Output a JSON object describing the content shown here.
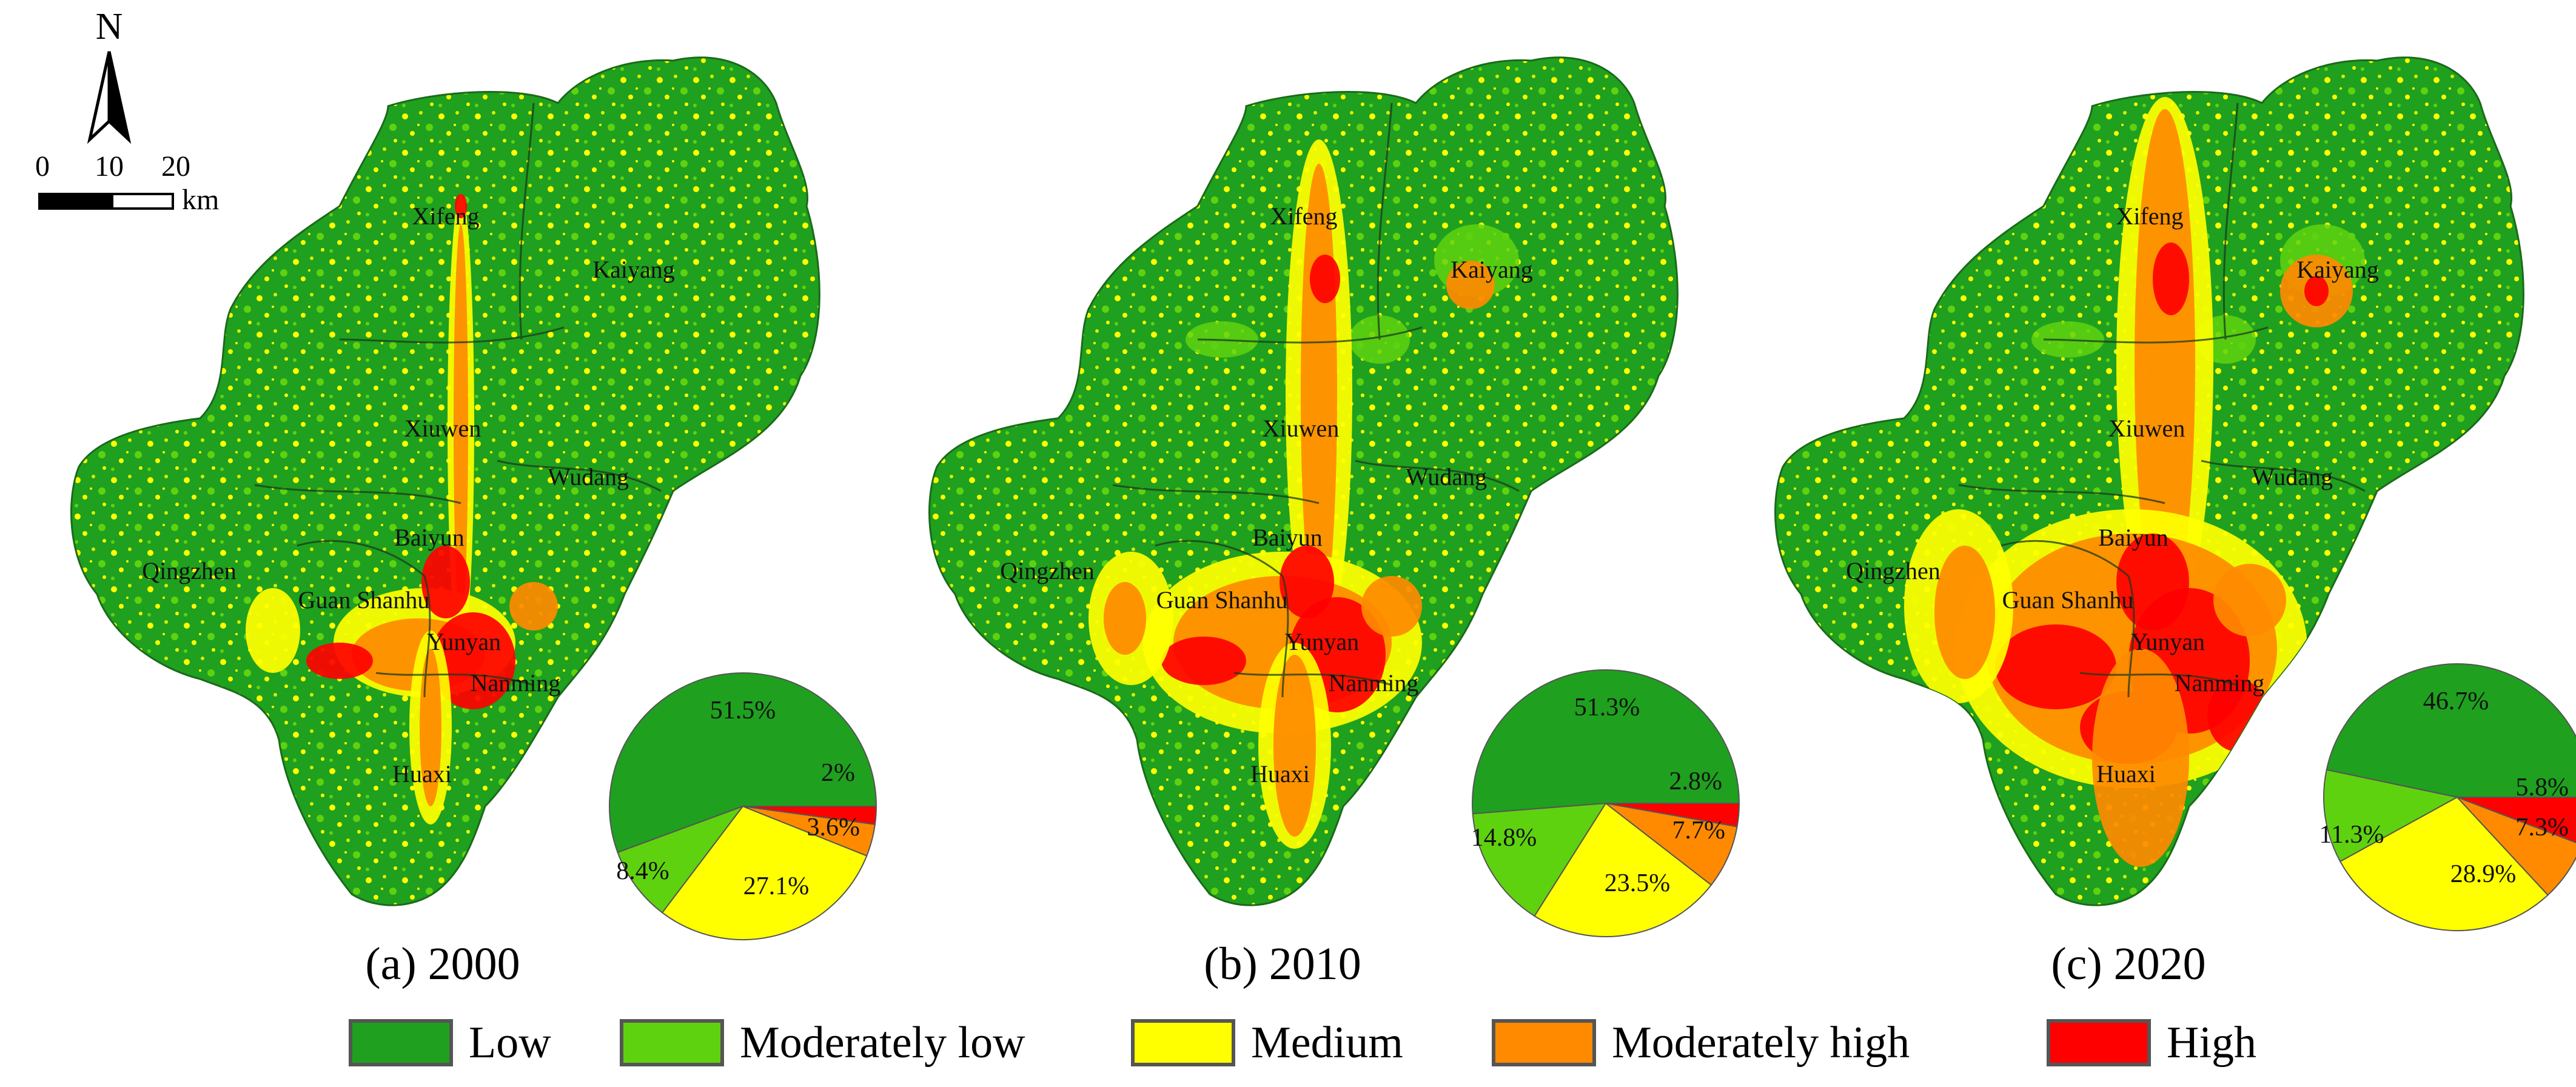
{
  "north_label": "N",
  "scale_bar": {
    "ticks": [
      "0",
      "10",
      "20"
    ],
    "unit": "km"
  },
  "classes": [
    {
      "key": "low",
      "label": "Low",
      "color": "#1fa01f"
    },
    {
      "key": "moderately_low",
      "label": "Moderately low",
      "color": "#5fd20f"
    },
    {
      "key": "medium",
      "label": "Medium",
      "color": "#ffff00"
    },
    {
      "key": "moderately_high",
      "label": "Moderately high",
      "color": "#ff8a00"
    },
    {
      "key": "high",
      "label": "High",
      "color": "#ff0000"
    }
  ],
  "panels": [
    {
      "caption": "(a) 2000",
      "year": "2000",
      "districts": [
        "Xifeng",
        "Kaiyang",
        "Xiuwen",
        "Wudang",
        "Qingzhen",
        "Baiyun",
        "Guan Shanhu",
        "Yunyan",
        "Nanming",
        "Huaxi"
      ]
    },
    {
      "caption": "(b) 2010",
      "year": "2010",
      "districts": [
        "Xifeng",
        "Kaiyang",
        "Xiuwen",
        "Wudang",
        "Qingzhen",
        "Baiyun",
        "Guan Shanhu",
        "Yunyan",
        "Nanming",
        "Huaxi"
      ]
    },
    {
      "caption": "(c) 2020",
      "year": "2020",
      "districts": [
        "Xifeng",
        "Kaiyang",
        "Xiuwen",
        "Wudang",
        "Qingzhen",
        "Baiyun",
        "Guan Shanhu",
        "Yunyan",
        "Nanming",
        "Huaxi"
      ]
    }
  ],
  "chart_data": [
    {
      "type": "pie",
      "title": "(a) 2000",
      "categories": [
        "Low",
        "Moderately low",
        "Medium",
        "Moderately high",
        "High"
      ],
      "values": [
        51.5,
        8.4,
        27.1,
        3.6,
        2
      ],
      "labels": [
        "51.5%",
        "8.4%",
        "27.1%",
        "3.6%",
        "2%"
      ]
    },
    {
      "type": "pie",
      "title": "(b) 2010",
      "categories": [
        "Low",
        "Moderately low",
        "Medium",
        "Moderately high",
        "High"
      ],
      "values": [
        51.3,
        14.8,
        23.5,
        7.7,
        2.8
      ],
      "labels": [
        "51.3%",
        "14.8%",
        "23.5%",
        "7.7%",
        "2.8%"
      ]
    },
    {
      "type": "pie",
      "title": "(c) 2020",
      "categories": [
        "Low",
        "Moderately low",
        "Medium",
        "Moderately high",
        "High"
      ],
      "values": [
        46.7,
        11.3,
        28.9,
        7.3,
        5.8
      ],
      "labels": [
        "46.7%",
        "11.3%",
        "28.9%",
        "7.3%",
        "5.8%"
      ]
    }
  ]
}
